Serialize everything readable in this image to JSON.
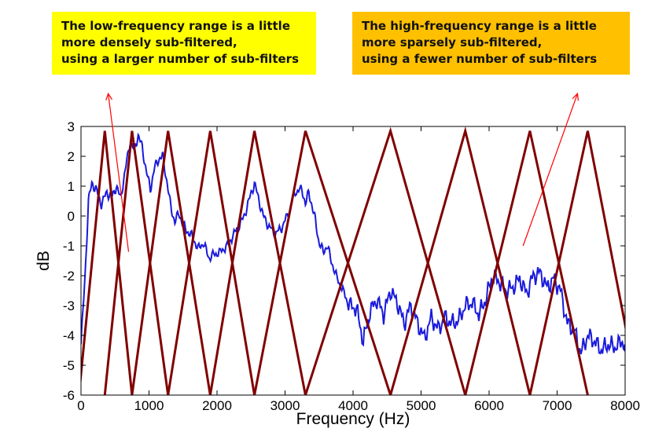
{
  "callouts": {
    "left": {
      "lines": [
        "The low-frequency range is a little",
        "more densely sub-filtered,",
        "using a larger number of sub-filters"
      ],
      "color": "#ffff00"
    },
    "right": {
      "lines": [
        "The high-frequency range is a little",
        "more sparsely sub-filtered,",
        "using a fewer number of sub-filters"
      ],
      "color": "#ffc000"
    },
    "arrow_color": "#ff0000"
  },
  "chart_data": {
    "type": "line",
    "title": "",
    "xlabel": "Frequency (Hz)",
    "ylabel": "dB",
    "xlim": [
      0,
      8000
    ],
    "ylim": [
      -6,
      3
    ],
    "xticks": [
      0,
      1000,
      2000,
      3000,
      4000,
      5000,
      6000,
      7000,
      8000
    ],
    "yticks": [
      3,
      2,
      1,
      0,
      -1,
      -2,
      -3,
      -4,
      -5,
      -6
    ],
    "grid": false,
    "series": [
      {
        "kind": "spectrum",
        "color": "#1a1adc",
        "x": [
          0,
          60,
          110,
          160,
          220,
          300,
          380,
          450,
          520,
          580,
          650,
          720,
          780,
          840,
          900,
          960,
          1020,
          1080,
          1140,
          1200,
          1260,
          1320,
          1380,
          1440,
          1500,
          1560,
          1640,
          1720,
          1800,
          1880,
          1950,
          2050,
          2150,
          2250,
          2330,
          2400,
          2480,
          2550,
          2620,
          2680,
          2750,
          2850,
          2950,
          3050,
          3150,
          3250,
          3300,
          3350,
          3400,
          3450,
          3500,
          3560,
          3620,
          3680,
          3750,
          3850,
          3950,
          4050,
          4150,
          4250,
          4350,
          4450,
          4550,
          4650,
          4750,
          4850,
          4950,
          5050,
          5150,
          5250,
          5350,
          5450,
          5550,
          5650,
          5750,
          5850,
          5950,
          6050,
          6150,
          6250,
          6350,
          6450,
          6550,
          6650,
          6750,
          6850,
          6950,
          7050,
          7150,
          7250,
          7350,
          7450,
          7550,
          7650,
          7750,
          7850,
          7950,
          8000
        ],
        "y": [
          -4.3,
          -2.0,
          0.5,
          1.1,
          0.9,
          0.4,
          0.8,
          0.6,
          1.0,
          0.6,
          1.5,
          2.5,
          2.2,
          2.7,
          2.3,
          1.5,
          0.9,
          1.6,
          1.9,
          2.0,
          1.2,
          0.3,
          -0.2,
          0.1,
          -0.3,
          -0.5,
          -0.7,
          -1.1,
          -0.9,
          -1.4,
          -1.3,
          -1.2,
          -1.0,
          -0.6,
          -0.3,
          0.0,
          0.6,
          1.1,
          0.5,
          0.0,
          -0.3,
          -0.6,
          -0.4,
          0.1,
          0.8,
          0.9,
          0.4,
          0.8,
          0.3,
          -0.2,
          -0.9,
          -1.2,
          -1.0,
          -1.5,
          -2.0,
          -2.5,
          -3.0,
          -3.1,
          -4.2,
          -3.2,
          -2.8,
          -3.3,
          -2.5,
          -2.9,
          -3.6,
          -3.0,
          -3.6,
          -4.1,
          -3.4,
          -3.8,
          -3.4,
          -3.6,
          -3.5,
          -3.0,
          -2.9,
          -3.3,
          -2.8,
          -2.0,
          -2.2,
          -2.5,
          -2.4,
          -2.1,
          -2.6,
          -2.0,
          -1.9,
          -2.4,
          -2.1,
          -2.5,
          -3.6,
          -3.8,
          -4.6,
          -4.0,
          -4.2,
          -4.5,
          -4.3,
          -4.4,
          -4.2,
          -4.3
        ]
      },
      {
        "kind": "triangular-filter-bank",
        "color": "#800000",
        "bottom_db": -6,
        "top_db": 2.85,
        "centers": [
          350,
          750,
          1280,
          1900,
          2550,
          3300,
          4550,
          5650,
          6600,
          7450
        ],
        "edges": [
          0,
          350,
          750,
          1280,
          1900,
          2550,
          3300,
          4550,
          5650,
          6600,
          7450,
          8200
        ],
        "left_edge_override": {
          "0": -30
        }
      }
    ],
    "annotations": [
      {
        "target": "callouts.left",
        "from": [
          700,
          -1.2
        ],
        "to": [
          400,
          4.1
        ]
      },
      {
        "target": "callouts.right",
        "from": [
          6500,
          -1.0
        ],
        "to": [
          7300,
          4.1
        ]
      }
    ]
  }
}
